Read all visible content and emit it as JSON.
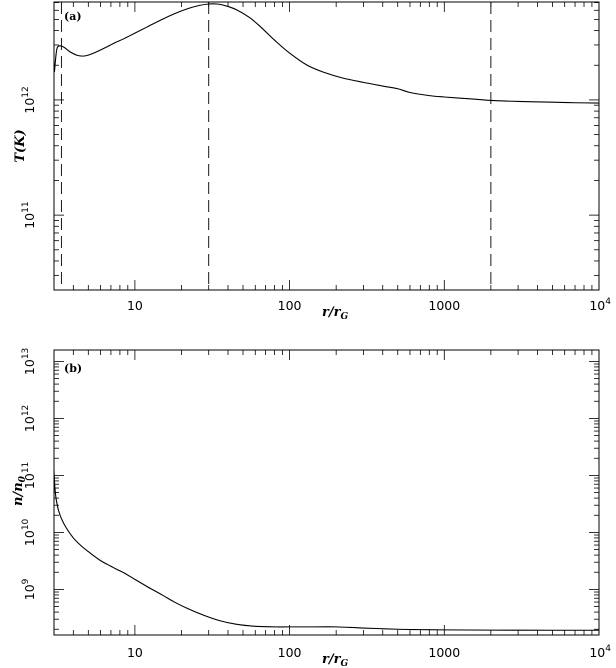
{
  "chart_data": [
    {
      "type": "line",
      "panel_label": "(a)",
      "xlabel_main": "r/r",
      "xlabel_sub": "G",
      "ylabel_main": "T(K)",
      "xscale": "log",
      "yscale": "log",
      "xlim": [
        3,
        10000
      ],
      "ylim_exp": [
        10.35,
        12.85
      ],
      "x_ticks": [
        {
          "value": 10,
          "base": "10",
          "exp": ""
        },
        {
          "value": 100,
          "base": "100",
          "exp": ""
        },
        {
          "value": 1000,
          "base": "1000",
          "exp": ""
        },
        {
          "value": 10000,
          "base": "10",
          "exp": "4"
        }
      ],
      "y_ticks": [
        {
          "exp_value": 11,
          "base": "10",
          "exp": "11"
        },
        {
          "exp_value": 12,
          "base": "10",
          "exp": "12"
        }
      ],
      "vlines": [
        3.35,
        30,
        2000
      ],
      "series": [
        {
          "x": [
            3.02,
            3.08,
            3.15,
            3.3,
            3.5,
            3.8,
            4.2,
            4.6,
            5.0,
            5.6,
            6.3,
            7.3,
            8.5,
            10,
            12,
            15,
            18,
            22,
            26,
            30,
            34,
            38,
            45,
            55,
            65,
            80,
            100,
            130,
            170,
            220,
            300,
            400,
            500,
            600,
            800,
            1000,
            1500,
            2000,
            3000,
            5000,
            7000,
            10000
          ],
          "y": [
            1750000000000.0,
            2350000000000.0,
            2850000000000.0,
            2950000000000.0,
            2850000000000.0,
            2620000000000.0,
            2450000000000.0,
            2400000000000.0,
            2450000000000.0,
            2600000000000.0,
            2800000000000.0,
            3100000000000.0,
            3400000000000.0,
            3800000000000.0,
            4300000000000.0,
            5000000000000.0,
            5600000000000.0,
            6200000000000.0,
            6600000000000.0,
            6800000000000.0,
            6800000000000.0,
            6600000000000.0,
            6100000000000.0,
            5200000000000.0,
            4300000000000.0,
            3300000000000.0,
            2550000000000.0,
            2000000000000.0,
            1720000000000.0,
            1550000000000.0,
            1420000000000.0,
            1320000000000.0,
            1250000000000.0,
            1160000000000.0,
            1090000000000.0,
            1060000000000.0,
            1020000000000.0,
            990000000000.0,
            970000000000.0,
            955000000000.0,
            945000000000.0,
            940000000000.0
          ]
        }
      ]
    },
    {
      "type": "line",
      "panel_label": "(b)",
      "xlabel_main": "r/r",
      "xlabel_sub": "G",
      "ylabel_main": "n/n",
      "ylabel_sub": "0",
      "xscale": "log",
      "yscale": "log",
      "xlim": [
        3,
        10000
      ],
      "ylim_exp": [
        8.2,
        13.2
      ],
      "x_ticks": [
        {
          "value": 10,
          "base": "10",
          "exp": ""
        },
        {
          "value": 100,
          "base": "100",
          "exp": ""
        },
        {
          "value": 1000,
          "base": "1000",
          "exp": ""
        },
        {
          "value": 10000,
          "base": "10",
          "exp": "4"
        }
      ],
      "y_ticks": [
        {
          "exp_value": 9,
          "base": "10",
          "exp": "9"
        },
        {
          "exp_value": 10,
          "base": "10",
          "exp": "10"
        },
        {
          "exp_value": 11,
          "base": "10",
          "exp": "11"
        },
        {
          "exp_value": 12,
          "base": "10",
          "exp": "12"
        },
        {
          "exp_value": 13,
          "base": "10",
          "exp": "13"
        }
      ],
      "series": [
        {
          "x": [
            3.0,
            3.02,
            3.05,
            3.1,
            3.2,
            3.35,
            3.6,
            4.0,
            4.5,
            5.0,
            6.0,
            7.0,
            7.5,
            8.5,
            10,
            12,
            15,
            18,
            22,
            28,
            35,
            45,
            60,
            80,
            100,
            150,
            200,
            300,
            500,
            700,
            1000,
            2000,
            5000,
            10000
          ],
          "y": [
            120000000000.0,
            80000000000.0,
            55000000000.0,
            38000000000.0,
            25000000000.0,
            17500000000.0,
            12000000000.0,
            8000000000.0,
            5800000000.0,
            4600000000.0,
            3200000000.0,
            2550000000.0,
            2300000000.0,
            1950000000.0,
            1500000000.0,
            1120000000.0,
            800000000.0,
            600000000.0,
            460000000.0,
            350000000.0,
            285000000.0,
            245000000.0,
            225000000.0,
            220000000.0,
            220000000.0,
            220000000.0,
            220000000.0,
            210000000.0,
            200000000.0,
            197000000.0,
            195000000.0,
            193000000.0,
            192000000.0,
            192000000.0
          ]
        }
      ]
    }
  ]
}
